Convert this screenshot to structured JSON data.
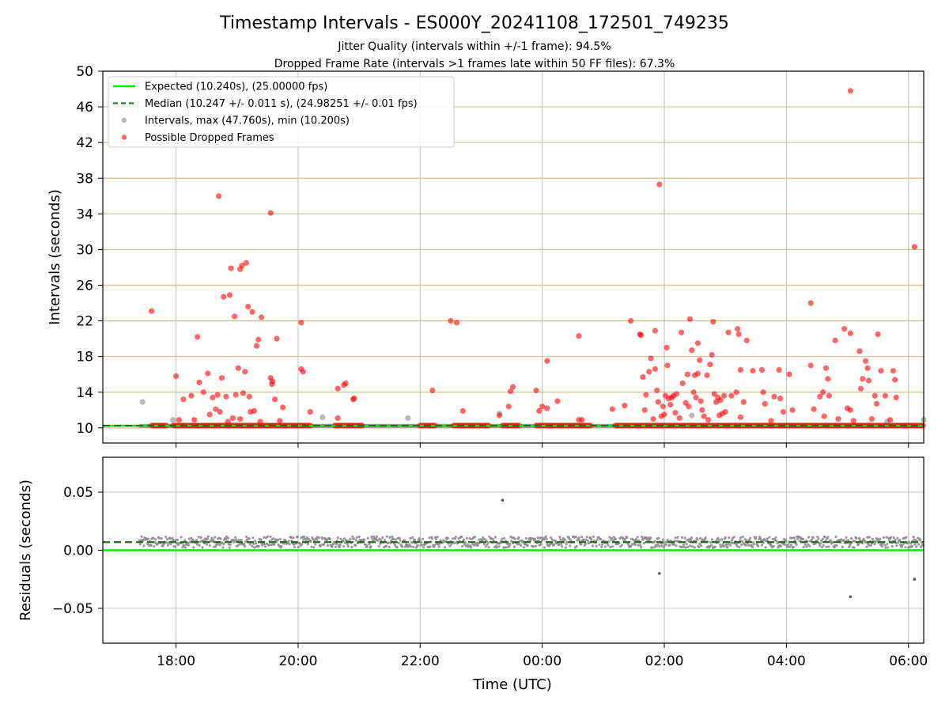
{
  "figure": {
    "title": "Timestamp Intervals - ES000Y_20241108_172501_749235",
    "subtitle_1": "Jitter Quality (intervals within +/-1 frame): 94.5%",
    "subtitle_2": "Dropped Frame Rate (intervals >1 frames late within 50 FF files): 67.3%"
  },
  "chart_data": [
    {
      "type": "scatter",
      "panel": "top",
      "ylabel": "Intervals (seconds)",
      "xlabel": "",
      "xlim": [
        -1.2,
        12.25
      ],
      "ylim": [
        8.3,
        50
      ],
      "x_ticks": [
        0,
        2,
        4,
        6,
        8,
        10,
        12
      ],
      "y_ticks": [
        10,
        14,
        18,
        22,
        26,
        30,
        34,
        38,
        42,
        46,
        50
      ],
      "y_tick_labels": [
        "10",
        "14",
        "18",
        "22",
        "26",
        "30",
        "34",
        "38",
        "42",
        "46",
        "50"
      ],
      "grid": true,
      "hgrid_color": "#d2c088",
      "legend": {
        "placement": "top-left",
        "entries": [
          {
            "label": "Expected (10.240s), (25.00000 fps)",
            "style": "solid-line",
            "color": "#00ee00"
          },
          {
            "label": "Median (10.247 +/- 0.011 s), (24.98251 +/- 0.01 fps)",
            "style": "dashed-line",
            "color": "#1a7a1a"
          },
          {
            "label": "Intervals, max (47.760s), min (10.200s)",
            "style": "marker",
            "color": "#888888"
          },
          {
            "label": "Possible Dropped Frames",
            "style": "marker",
            "color": "#ff0000"
          }
        ]
      },
      "expected_value": 10.24,
      "median_value": 10.247,
      "baseline_segments": [
        [
          -0.6,
          12.25
        ]
      ],
      "dropped_band_segments": [
        [
          -0.4,
          -0.15
        ],
        [
          -0.05,
          2.2
        ],
        [
          2.6,
          3.05
        ],
        [
          4.0,
          4.25
        ],
        [
          4.55,
          5.15
        ],
        [
          5.35,
          5.65
        ],
        [
          5.9,
          6.55
        ],
        [
          6.55,
          6.8
        ],
        [
          7.2,
          12.25
        ]
      ],
      "gray_outliers": [
        {
          "x": -0.55,
          "y": 12.9
        },
        {
          "x": -0.05,
          "y": 10.9
        },
        {
          "x": 2.4,
          "y": 11.2
        },
        {
          "x": 3.8,
          "y": 11.1
        },
        {
          "x": 5.3,
          "y": 11.6
        },
        {
          "x": 8.45,
          "y": 11.4
        },
        {
          "x": 11.65,
          "y": 10.7
        },
        {
          "x": 12.25,
          "y": 10.9
        }
      ],
      "dropped_points": [
        {
          "x": -0.4,
          "y": 23.1
        },
        {
          "x": 0.0,
          "y": 15.8
        },
        {
          "x": 0.05,
          "y": 10.9
        },
        {
          "x": 0.12,
          "y": 13.2
        },
        {
          "x": 0.25,
          "y": 13.6
        },
        {
          "x": 0.3,
          "y": 10.9
        },
        {
          "x": 0.35,
          "y": 20.2
        },
        {
          "x": 0.38,
          "y": 15.1
        },
        {
          "x": 0.45,
          "y": 14.0
        },
        {
          "x": 0.52,
          "y": 16.1
        },
        {
          "x": 0.55,
          "y": 11.5
        },
        {
          "x": 0.6,
          "y": 13.4
        },
        {
          "x": 0.65,
          "y": 12.1
        },
        {
          "x": 0.68,
          "y": 13.7
        },
        {
          "x": 0.7,
          "y": 36.0
        },
        {
          "x": 0.72,
          "y": 11.8
        },
        {
          "x": 0.75,
          "y": 15.6
        },
        {
          "x": 0.78,
          "y": 24.7
        },
        {
          "x": 0.82,
          "y": 13.5
        },
        {
          "x": 0.85,
          "y": 10.7
        },
        {
          "x": 0.88,
          "y": 24.9
        },
        {
          "x": 0.9,
          "y": 27.9
        },
        {
          "x": 0.93,
          "y": 11.1
        },
        {
          "x": 0.96,
          "y": 22.5
        },
        {
          "x": 0.98,
          "y": 13.7
        },
        {
          "x": 1.02,
          "y": 16.7
        },
        {
          "x": 1.05,
          "y": 27.8
        },
        {
          "x": 1.05,
          "y": 11.0
        },
        {
          "x": 1.08,
          "y": 28.2
        },
        {
          "x": 1.1,
          "y": 13.9
        },
        {
          "x": 1.13,
          "y": 16.3
        },
        {
          "x": 1.15,
          "y": 28.5
        },
        {
          "x": 1.18,
          "y": 23.6
        },
        {
          "x": 1.2,
          "y": 13.5
        },
        {
          "x": 1.22,
          "y": 11.8
        },
        {
          "x": 1.25,
          "y": 23.0
        },
        {
          "x": 1.28,
          "y": 11.9
        },
        {
          "x": 1.32,
          "y": 19.2
        },
        {
          "x": 1.35,
          "y": 19.9
        },
        {
          "x": 1.38,
          "y": 10.7
        },
        {
          "x": 1.4,
          "y": 22.4
        },
        {
          "x": 1.55,
          "y": 34.1
        },
        {
          "x": 1.55,
          "y": 15.6
        },
        {
          "x": 1.57,
          "y": 14.9
        },
        {
          "x": 1.58,
          "y": 15.2
        },
        {
          "x": 1.62,
          "y": 13.2
        },
        {
          "x": 1.65,
          "y": 20.0
        },
        {
          "x": 1.7,
          "y": 10.8
        },
        {
          "x": 1.75,
          "y": 12.3
        },
        {
          "x": 2.05,
          "y": 21.8
        },
        {
          "x": 2.05,
          "y": 16.6
        },
        {
          "x": 2.08,
          "y": 16.3
        },
        {
          "x": 2.2,
          "y": 11.8
        },
        {
          "x": 2.65,
          "y": 14.4
        },
        {
          "x": 2.65,
          "y": 11.1
        },
        {
          "x": 2.75,
          "y": 14.8
        },
        {
          "x": 2.78,
          "y": 15.0
        },
        {
          "x": 2.9,
          "y": 13.2
        },
        {
          "x": 2.92,
          "y": 13.3
        },
        {
          "x": 4.2,
          "y": 14.2
        },
        {
          "x": 4.5,
          "y": 22.0
        },
        {
          "x": 4.6,
          "y": 21.8
        },
        {
          "x": 4.7,
          "y": 11.9
        },
        {
          "x": 5.3,
          "y": 11.4
        },
        {
          "x": 5.45,
          "y": 12.4
        },
        {
          "x": 5.48,
          "y": 14.1
        },
        {
          "x": 5.52,
          "y": 14.6
        },
        {
          "x": 5.9,
          "y": 14.2
        },
        {
          "x": 5.95,
          "y": 11.9
        },
        {
          "x": 6.0,
          "y": 12.4
        },
        {
          "x": 6.08,
          "y": 12.2
        },
        {
          "x": 6.08,
          "y": 17.5
        },
        {
          "x": 6.25,
          "y": 13.0
        },
        {
          "x": 6.6,
          "y": 20.3
        },
        {
          "x": 6.6,
          "y": 10.9
        },
        {
          "x": 6.65,
          "y": 10.9
        },
        {
          "x": 7.15,
          "y": 12.1
        },
        {
          "x": 7.35,
          "y": 12.5
        },
        {
          "x": 7.45,
          "y": 22.0
        },
        {
          "x": 7.6,
          "y": 20.5
        },
        {
          "x": 7.62,
          "y": 20.4
        },
        {
          "x": 7.65,
          "y": 15.7
        },
        {
          "x": 7.68,
          "y": 12.0
        },
        {
          "x": 7.7,
          "y": 13.7
        },
        {
          "x": 7.75,
          "y": 16.3
        },
        {
          "x": 7.78,
          "y": 17.8
        },
        {
          "x": 7.82,
          "y": 11.0
        },
        {
          "x": 7.85,
          "y": 16.6
        },
        {
          "x": 7.85,
          "y": 20.9
        },
        {
          "x": 7.88,
          "y": 14.2
        },
        {
          "x": 7.9,
          "y": 12.9
        },
        {
          "x": 7.92,
          "y": 37.3
        },
        {
          "x": 7.95,
          "y": 11.3
        },
        {
          "x": 7.98,
          "y": 12.4
        },
        {
          "x": 8.0,
          "y": 11.5
        },
        {
          "x": 8.02,
          "y": 13.6
        },
        {
          "x": 8.04,
          "y": 19.0
        },
        {
          "x": 8.05,
          "y": 17.0
        },
        {
          "x": 8.07,
          "y": 13.3
        },
        {
          "x": 8.1,
          "y": 12.6
        },
        {
          "x": 8.12,
          "y": 13.4
        },
        {
          "x": 8.15,
          "y": 13.6
        },
        {
          "x": 8.18,
          "y": 11.7
        },
        {
          "x": 8.2,
          "y": 13.8
        },
        {
          "x": 8.25,
          "y": 11.1
        },
        {
          "x": 8.28,
          "y": 20.7
        },
        {
          "x": 8.3,
          "y": 15.0
        },
        {
          "x": 8.35,
          "y": 12.8
        },
        {
          "x": 8.38,
          "y": 16.0
        },
        {
          "x": 8.4,
          "y": 12.4
        },
        {
          "x": 8.42,
          "y": 22.2
        },
        {
          "x": 8.45,
          "y": 18.7
        },
        {
          "x": 8.48,
          "y": 14.0
        },
        {
          "x": 8.5,
          "y": 15.9
        },
        {
          "x": 8.52,
          "y": 13.4
        },
        {
          "x": 8.55,
          "y": 19.5
        },
        {
          "x": 8.55,
          "y": 16.1
        },
        {
          "x": 8.58,
          "y": 17.6
        },
        {
          "x": 8.6,
          "y": 13.0
        },
        {
          "x": 8.62,
          "y": 12.0
        },
        {
          "x": 8.65,
          "y": 11.3
        },
        {
          "x": 8.7,
          "y": 15.9
        },
        {
          "x": 8.72,
          "y": 10.9
        },
        {
          "x": 8.75,
          "y": 17.1
        },
        {
          "x": 8.78,
          "y": 18.2
        },
        {
          "x": 8.8,
          "y": 21.9
        },
        {
          "x": 8.82,
          "y": 13.8
        },
        {
          "x": 8.85,
          "y": 12.9
        },
        {
          "x": 8.88,
          "y": 13.4
        },
        {
          "x": 8.9,
          "y": 11.4
        },
        {
          "x": 8.92,
          "y": 13.1
        },
        {
          "x": 8.95,
          "y": 11.6
        },
        {
          "x": 8.98,
          "y": 13.6
        },
        {
          "x": 9.0,
          "y": 11.8
        },
        {
          "x": 9.05,
          "y": 20.7
        },
        {
          "x": 9.1,
          "y": 13.6
        },
        {
          "x": 9.18,
          "y": 14.0
        },
        {
          "x": 9.2,
          "y": 21.1
        },
        {
          "x": 9.22,
          "y": 20.5
        },
        {
          "x": 9.25,
          "y": 11.2
        },
        {
          "x": 9.25,
          "y": 16.5
        },
        {
          "x": 9.3,
          "y": 12.9
        },
        {
          "x": 9.35,
          "y": 19.8
        },
        {
          "x": 9.45,
          "y": 16.4
        },
        {
          "x": 9.6,
          "y": 16.5
        },
        {
          "x": 9.62,
          "y": 14.0
        },
        {
          "x": 9.65,
          "y": 12.7
        },
        {
          "x": 9.75,
          "y": 10.8
        },
        {
          "x": 9.8,
          "y": 13.5
        },
        {
          "x": 9.88,
          "y": 16.5
        },
        {
          "x": 9.9,
          "y": 13.3
        },
        {
          "x": 9.95,
          "y": 11.8
        },
        {
          "x": 10.05,
          "y": 16.0
        },
        {
          "x": 10.1,
          "y": 12.0
        },
        {
          "x": 10.4,
          "y": 24.0
        },
        {
          "x": 10.45,
          "y": 12.1
        },
        {
          "x": 10.4,
          "y": 17.0
        },
        {
          "x": 10.55,
          "y": 13.5
        },
        {
          "x": 10.6,
          "y": 14.0
        },
        {
          "x": 10.62,
          "y": 11.3
        },
        {
          "x": 10.65,
          "y": 16.7
        },
        {
          "x": 10.68,
          "y": 15.5
        },
        {
          "x": 10.7,
          "y": 13.6
        },
        {
          "x": 10.8,
          "y": 19.8
        },
        {
          "x": 10.85,
          "y": 11.0
        },
        {
          "x": 10.95,
          "y": 21.1
        },
        {
          "x": 11.0,
          "y": 12.2
        },
        {
          "x": 11.05,
          "y": 12.0
        },
        {
          "x": 11.05,
          "y": 20.6
        },
        {
          "x": 11.1,
          "y": 10.8
        },
        {
          "x": 11.2,
          "y": 18.6
        },
        {
          "x": 11.22,
          "y": 14.4
        },
        {
          "x": 11.25,
          "y": 15.5
        },
        {
          "x": 11.3,
          "y": 17.5
        },
        {
          "x": 11.33,
          "y": 16.7
        },
        {
          "x": 11.35,
          "y": 15.3
        },
        {
          "x": 11.4,
          "y": 11.0
        },
        {
          "x": 11.45,
          "y": 13.6
        },
        {
          "x": 11.48,
          "y": 12.7
        },
        {
          "x": 11.5,
          "y": 20.5
        },
        {
          "x": 11.55,
          "y": 16.4
        },
        {
          "x": 11.62,
          "y": 13.6
        },
        {
          "x": 11.7,
          "y": 10.9
        },
        {
          "x": 11.75,
          "y": 16.4
        },
        {
          "x": 11.78,
          "y": 15.4
        },
        {
          "x": 11.8,
          "y": 13.4
        },
        {
          "x": 12.1,
          "y": 30.3
        },
        {
          "x": 11.05,
          "y": 47.8
        }
      ]
    },
    {
      "type": "scatter",
      "panel": "bottom",
      "ylabel": "Residuals (seconds)",
      "xlabel": "Time (UTC)",
      "xlim": [
        -1.2,
        12.25
      ],
      "ylim": [
        -0.08,
        0.08
      ],
      "x_ticks": [
        0,
        2,
        4,
        6,
        8,
        10,
        12
      ],
      "x_tick_labels": [
        "18:00",
        "20:00",
        "22:00",
        "00:00",
        "02:00",
        "04:00",
        "06:00"
      ],
      "y_ticks": [
        -0.05,
        0.0,
        0.05
      ],
      "y_tick_labels": [
        "−0.05",
        "0.00",
        "0.05"
      ],
      "grid": true,
      "expected_residual": 0.0,
      "median_residual": 0.007,
      "residual_band": {
        "x_start": -0.6,
        "x_end": 12.25,
        "center": 0.007,
        "spread": 0.003
      },
      "residual_outliers": [
        {
          "x": 5.35,
          "y": 0.043
        },
        {
          "x": 7.92,
          "y": -0.02
        },
        {
          "x": 11.05,
          "y": -0.04
        },
        {
          "x": 12.1,
          "y": -0.025
        }
      ]
    }
  ],
  "colors": {
    "expected": "#00ee00",
    "median": "#1a6a1a",
    "interval": "#888888",
    "dropped": "#ff0000",
    "vgrid": "#c8c8c8",
    "hgrid": "#d2c088"
  }
}
